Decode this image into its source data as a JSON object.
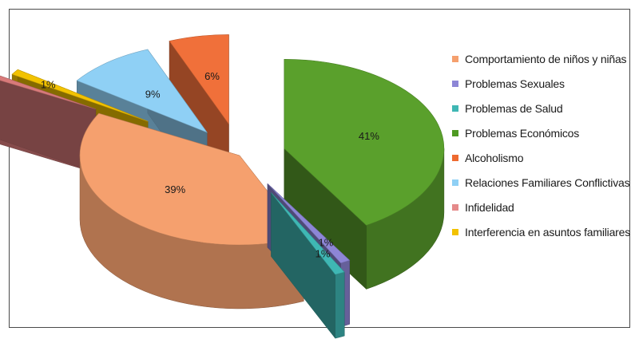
{
  "chart_data": {
    "type": "pie",
    "title": "",
    "three_d": true,
    "exploded": true,
    "legend_position": "right",
    "slices": [
      {
        "name": "Problemas Económicos",
        "value": 41,
        "label": "41%",
        "color": "#5aa02c"
      },
      {
        "name": "Problemas Sexuales",
        "value": 1,
        "label": "1%",
        "color": "#8d86d6"
      },
      {
        "name": "Problemas de Salud",
        "value": 1,
        "label": "1%",
        "color": "#3fb7b4"
      },
      {
        "name": "Comportamiento de niños y niñas",
        "value": 39,
        "label": "39%",
        "color": "#f5a06e"
      },
      {
        "name": "Infidelidad",
        "value": 1,
        "label": "1%",
        "color": "#d87a7a"
      },
      {
        "name": "Interferencia en asuntos familiares",
        "value": 1,
        "label": "1%",
        "color": "#f2c200"
      },
      {
        "name": "Relaciones Familiares Conflictivas",
        "value": 9,
        "label": "9%",
        "color": "#8fd0f5"
      },
      {
        "name": "Alcoholismo",
        "value": 6,
        "label": "6%",
        "color": "#f0703a"
      }
    ]
  },
  "legend": {
    "items": [
      {
        "label": "Comportamiento de niños y niñas",
        "color": "#f5a06e"
      },
      {
        "label": "Problemas Sexuales",
        "color": "#8d86d6"
      },
      {
        "label": "Problemas de Salud",
        "color": "#3fb7b4"
      },
      {
        "label": "Problemas Económicos",
        "color": "#4e9a22"
      },
      {
        "label": "Alcoholismo",
        "color": "#ee6a30"
      },
      {
        "label": "Relaciones Familiares Conflictivas",
        "color": "#8fd0f5"
      },
      {
        "label": "Infidelidad",
        "color": "#e58a8a"
      },
      {
        "label": "Interferencia en asuntos familiares",
        "color": "#f2c200"
      }
    ]
  }
}
